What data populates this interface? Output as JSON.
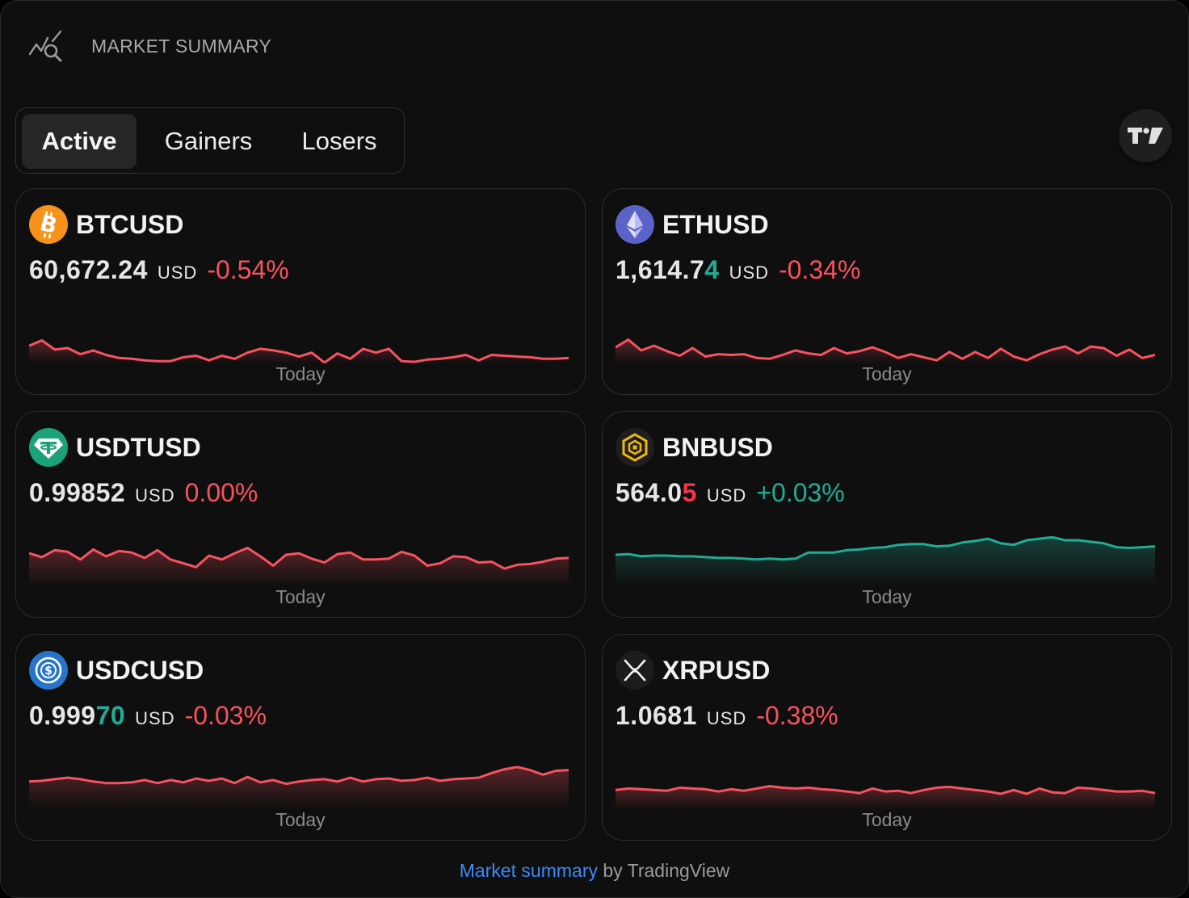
{
  "header": {
    "title": "MARKET SUMMARY",
    "icon": "chart-magnifier-icon"
  },
  "tabs": [
    {
      "label": "Active",
      "selected": true
    },
    {
      "label": "Gainers",
      "selected": false
    },
    {
      "label": "Losers",
      "selected": false
    }
  ],
  "brand_button": {
    "icon": "tradingview-logo-icon"
  },
  "colors": {
    "negative": "#f7525f",
    "positive": "#22ab94",
    "background": "#0f0f0f",
    "link": "#3d8af7"
  },
  "cards": [
    {
      "symbol": "BTCUSD",
      "icon": "bitcoin-logo-icon",
      "price_main": "60,672.24",
      "price_highlight": "",
      "price_direction": "",
      "currency": "USD",
      "change": "-0.54%",
      "trend": "neg",
      "period": "Today",
      "sparkline": [
        57,
        50,
        62,
        60,
        68,
        63,
        69,
        73,
        74,
        76,
        77,
        77,
        72,
        70,
        76,
        70,
        74,
        66,
        61,
        63,
        66,
        71,
        66,
        79,
        67,
        74,
        61,
        66,
        61,
        77,
        78,
        75,
        74,
        72,
        69,
        76,
        69,
        70,
        71,
        72,
        74,
        74,
        73
      ]
    },
    {
      "symbol": "ETHUSD",
      "icon": "ethereum-logo-icon",
      "price_main": "1,614.7",
      "price_highlight": "4",
      "price_direction": "up",
      "currency": "USD",
      "change": "-0.34%",
      "trend": "neg",
      "period": "Today",
      "sparkline": [
        59,
        49,
        63,
        57,
        64,
        70,
        60,
        71,
        68,
        69,
        68,
        73,
        74,
        69,
        63,
        67,
        69,
        60,
        67,
        64,
        59,
        65,
        73,
        68,
        72,
        76,
        65,
        74,
        65,
        73,
        61,
        71,
        76,
        68,
        62,
        58,
        67,
        58,
        60,
        70,
        62,
        73,
        69
      ]
    },
    {
      "symbol": "USDTUSD",
      "icon": "tether-logo-icon",
      "price_main": "0.99852",
      "price_highlight": "",
      "price_direction": "",
      "currency": "USD",
      "change": "0.00%",
      "trend": "neg",
      "period": "Today",
      "sparkline": [
        37,
        42,
        33,
        35,
        45,
        32,
        41,
        34,
        36,
        43,
        33,
        45,
        50,
        55,
        40,
        45,
        37,
        30,
        41,
        53,
        39,
        37,
        44,
        49,
        38,
        36,
        45,
        45,
        44,
        35,
        40,
        53,
        50,
        41,
        42,
        49,
        48,
        57,
        52,
        51,
        48,
        44,
        43
      ]
    },
    {
      "symbol": "BNBUSD",
      "icon": "binance-logo-icon",
      "price_main": "564.0",
      "price_highlight": "5",
      "price_direction": "down",
      "currency": "USD",
      "change": "+0.03%",
      "trend": "pos",
      "period": "Today",
      "sparkline": [
        39,
        38,
        41,
        40,
        40,
        41,
        41,
        42,
        43,
        43,
        44,
        45,
        44,
        45,
        44,
        36,
        36,
        36,
        33,
        32,
        30,
        29,
        26,
        25,
        25,
        28,
        27,
        23,
        21,
        18,
        24,
        26,
        20,
        18,
        16,
        20,
        20,
        22,
        24,
        29,
        30,
        29,
        28
      ]
    },
    {
      "symbol": "USDCUSD",
      "icon": "usd-coin-logo-icon",
      "price_main": "0.999",
      "price_highlight": "70",
      "price_direction": "up",
      "currency": "USD",
      "change": "-0.03%",
      "trend": "neg",
      "period": "Today",
      "sparkline": [
        44,
        43,
        41,
        39,
        41,
        44,
        46,
        46,
        45,
        42,
        46,
        42,
        45,
        40,
        43,
        40,
        46,
        38,
        45,
        42,
        47,
        44,
        42,
        41,
        44,
        39,
        44,
        41,
        40,
        43,
        42,
        39,
        43,
        41,
        40,
        39,
        33,
        28,
        25,
        29,
        35,
        30,
        29
      ]
    },
    {
      "symbol": "XRPUSD",
      "icon": "xrp-logo-icon",
      "price_main": "1.0681",
      "price_highlight": "",
      "price_direction": "",
      "currency": "USD",
      "change": "-0.38%",
      "trend": "neg",
      "period": "Today",
      "sparkline": [
        55,
        53,
        54,
        55,
        56,
        52,
        53,
        54,
        57,
        54,
        56,
        53,
        50,
        52,
        53,
        52,
        54,
        55,
        57,
        59,
        53,
        57,
        56,
        59,
        55,
        52,
        51,
        53,
        55,
        57,
        60,
        55,
        60,
        53,
        58,
        59,
        52,
        53,
        55,
        57,
        57,
        56,
        59
      ]
    }
  ],
  "footer": {
    "link_text": "Market summary",
    "suffix": " by TradingView"
  }
}
